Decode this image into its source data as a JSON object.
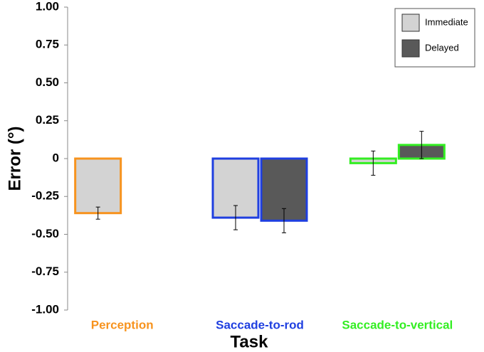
{
  "chart_data": {
    "type": "bar",
    "x_label": "Task",
    "y_label": "Error (°)",
    "categories": [
      "Perception",
      "Saccade-to-rod",
      "Saccade-to-vertical"
    ],
    "category_colors": [
      "#f7931e",
      "#1f3fe0",
      "#33ee22"
    ],
    "series": [
      {
        "name": "Immediate",
        "color": "#d3d3d3",
        "values": [
          -0.36,
          -0.39,
          -0.03
        ],
        "errors": [
          0.04,
          0.08,
          0.08
        ]
      },
      {
        "name": "Delayed",
        "color": "#595959",
        "values": [
          null,
          -0.41,
          0.09
        ],
        "errors": [
          null,
          0.08,
          0.09
        ]
      }
    ],
    "ylim": [
      -1,
      1
    ],
    "yticks": [
      {
        "value": 1,
        "label": "1.00"
      },
      0.75,
      {
        "value": 0.5,
        "label": "0.50"
      },
      0.25,
      0,
      -0.25,
      {
        "value": -0.5,
        "label": "-0.50"
      },
      -0.75,
      {
        "value": -1,
        "label": "-1.00"
      }
    ],
    "grid": false,
    "legend": "top-right"
  }
}
